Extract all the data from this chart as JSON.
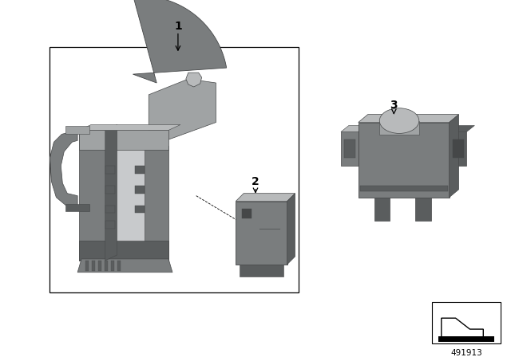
{
  "background_color": "#ffffff",
  "part_number": "491913",
  "gray_main": "#7a7d7e",
  "gray_light": "#a0a3a4",
  "gray_lighter": "#b8babb",
  "gray_dark": "#5a5d5e",
  "gray_darker": "#454748"
}
